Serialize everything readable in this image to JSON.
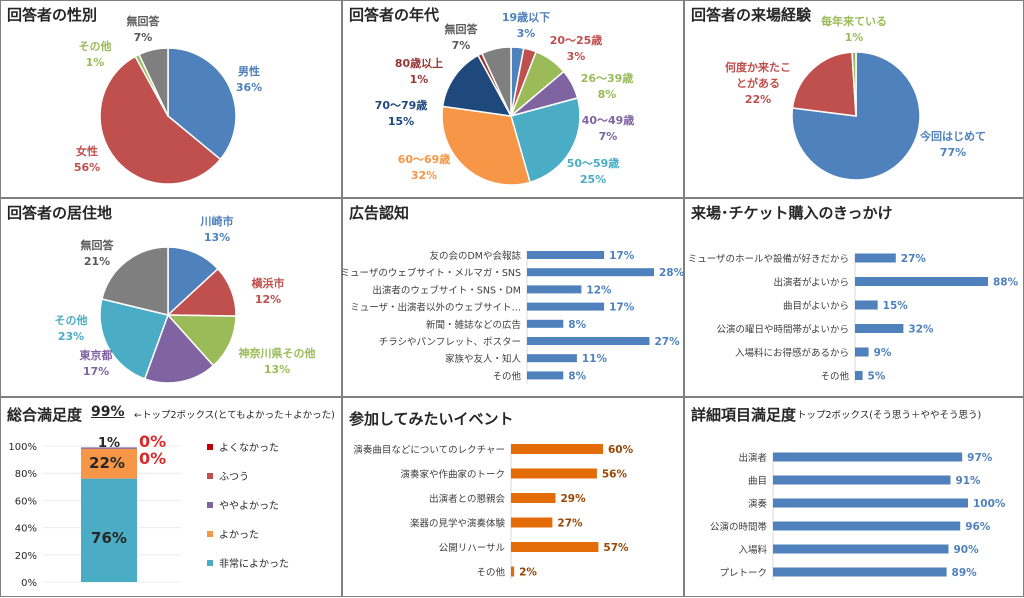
{
  "colors": {
    "blue": "#4f81bd",
    "red": "#c0504d",
    "green": "#9bbb59",
    "purple": "#8064a2",
    "teal": "#4bacc6",
    "orange": "#f79646",
    "navy": "#1f497d",
    "darkred": "#953735",
    "gray": "#7f7f7f",
    "bar_blue": "#4f81bd",
    "bar_orange": "#e36c09",
    "accent_red": "#d92b2b"
  },
  "panels": {
    "gender": {
      "title": "回答者の性別"
    },
    "age": {
      "title": "回答者の年代"
    },
    "visit": {
      "title": "回答者の来場経験"
    },
    "residence": {
      "title": "回答者の居住地"
    },
    "ad": {
      "title": "広告認知"
    },
    "trigger": {
      "title": "来場･チケット購入のきっかけ"
    },
    "satisfaction": {
      "title": "総合満足度",
      "score": "99%",
      "note": "←トップ2ボックス(とてもよかった＋よかった)"
    },
    "events": {
      "title": "参加してみたいイベント"
    },
    "detail": {
      "title": "詳細項目満足度",
      "note": "トップ2ボックス(そう思う＋ややそう思う)"
    }
  },
  "chart_data": [
    {
      "id": "gender",
      "type": "pie",
      "slices": [
        {
          "label": "男性",
          "pct": "36%",
          "value": 36,
          "color": "#4f81bd"
        },
        {
          "label": "女性",
          "pct": "56%",
          "value": 56,
          "color": "#c0504d"
        },
        {
          "label": "その他",
          "pct": "1%",
          "value": 1,
          "color": "#9bbb59"
        },
        {
          "label": "無回答",
          "pct": "7%",
          "value": 7,
          "color": "#7f7f7f"
        }
      ]
    },
    {
      "id": "age",
      "type": "pie",
      "slices": [
        {
          "label": "19歳以下",
          "pct": "3%",
          "value": 3,
          "color": "#4f81bd"
        },
        {
          "label": "20～25歳",
          "pct": "3%",
          "value": 3,
          "color": "#c0504d"
        },
        {
          "label": "26～39歳",
          "pct": "8%",
          "value": 8,
          "color": "#9bbb59"
        },
        {
          "label": "40～49歳",
          "pct": "7%",
          "value": 7,
          "color": "#8064a2"
        },
        {
          "label": "50～59歳",
          "pct": "25%",
          "value": 25,
          "color": "#4bacc6"
        },
        {
          "label": "60～69歳",
          "pct": "32%",
          "value": 32,
          "color": "#f79646"
        },
        {
          "label": "70～79歳",
          "pct": "15%",
          "value": 15,
          "color": "#1f497d"
        },
        {
          "label": "80歳以上",
          "pct": "1%",
          "value": 1,
          "color": "#953735"
        },
        {
          "label": "無回答",
          "pct": "7%",
          "value": 7,
          "color": "#7f7f7f"
        }
      ]
    },
    {
      "id": "visit",
      "type": "pie",
      "slices": [
        {
          "label": "今回はじめて",
          "pct": "77%",
          "value": 77,
          "color": "#4f81bd"
        },
        {
          "label": "何度か来たことがある",
          "pct": "22%",
          "value": 22,
          "color": "#c0504d"
        },
        {
          "label": "毎年来ている",
          "pct": "1%",
          "value": 1,
          "color": "#9bbb59"
        }
      ]
    },
    {
      "id": "residence",
      "type": "pie",
      "slices": [
        {
          "label": "川崎市",
          "pct": "13%",
          "value": 13,
          "color": "#4f81bd"
        },
        {
          "label": "横浜市",
          "pct": "12%",
          "value": 12,
          "color": "#c0504d"
        },
        {
          "label": "神奈川県その他",
          "pct": "13%",
          "value": 13,
          "color": "#9bbb59"
        },
        {
          "label": "東京都",
          "pct": "17%",
          "value": 17,
          "color": "#8064a2"
        },
        {
          "label": "その他",
          "pct": "23%",
          "value": 23,
          "color": "#4bacc6"
        },
        {
          "label": "無回答",
          "pct": "21%",
          "value": 21,
          "color": "#7f7f7f"
        }
      ]
    },
    {
      "id": "ad",
      "type": "bar",
      "orientation": "horizontal",
      "categories": [
        "友の会のDMや会報誌",
        "ミューザのウェブサイト・メルマガ・SNS",
        "出演者のウェブサイト・SNS・DM",
        "ミューザ・出演者以外のウェブサイト…",
        "新聞・雑誌などの広告",
        "チラシやパンフレット、ポスター",
        "家族や友人・知人",
        "その他"
      ],
      "values": [
        17,
        28,
        12,
        17,
        8,
        27,
        11,
        8
      ],
      "labels": [
        "17%",
        "28%",
        "12%",
        "17%",
        "8%",
        "27%",
        "11%",
        "8%"
      ],
      "max": 28
    },
    {
      "id": "trigger",
      "type": "bar",
      "orientation": "horizontal",
      "categories": [
        "ミューザのホールや設備が好きだから",
        "出演者がよいから",
        "曲目がよいから",
        "公演の曜日や時間帯がよいから",
        "入場料にお得感があるから",
        "その他"
      ],
      "values": [
        27,
        88,
        15,
        32,
        9,
        5
      ],
      "labels": [
        "27%",
        "88%",
        "15%",
        "32%",
        "9%",
        "5%"
      ],
      "max": 88
    },
    {
      "id": "satisfaction",
      "type": "bar",
      "orientation": "vertical",
      "stacked": true,
      "y_ticks": [
        "0%",
        "20%",
        "40%",
        "60%",
        "80%",
        "100%"
      ],
      "ylim": [
        0,
        100
      ],
      "segments": [
        {
          "name": "非常によかった",
          "value": 76,
          "label": "76%",
          "color": "#4bacc6"
        },
        {
          "name": "よかった",
          "value": 22,
          "label": "22%",
          "color": "#f79646"
        },
        {
          "name": "ややよかった",
          "value": 1,
          "label": "1%",
          "color": "#8064a2"
        },
        {
          "name": "ふつう",
          "value": 0,
          "label": "0%",
          "color": "#c0504d"
        },
        {
          "name": "よくなかった",
          "value": 0,
          "label": "0%",
          "color": "#c00000"
        }
      ],
      "legend": [
        "よくなかった",
        "ふつう",
        "ややよかった",
        "よかった",
        "非常によかった"
      ]
    },
    {
      "id": "events",
      "type": "bar",
      "orientation": "horizontal",
      "categories": [
        "演奏曲目などについてのレクチャー",
        "演奏家や作曲家のトーク",
        "出演者との懇親会",
        "楽器の見学や演奏体験",
        "公開リハーサル",
        "その他"
      ],
      "values": [
        60,
        56,
        29,
        27,
        57,
        2
      ],
      "labels": [
        "60%",
        "56%",
        "29%",
        "27%",
        "57%",
        "2%"
      ],
      "max": 60
    },
    {
      "id": "detail",
      "type": "bar",
      "orientation": "horizontal",
      "categories": [
        "出演者",
        "曲目",
        "演奏",
        "公演の時間帯",
        "入場料",
        "プレトーク"
      ],
      "values": [
        97,
        91,
        100,
        96,
        90,
        89
      ],
      "labels": [
        "97%",
        "91%",
        "100%",
        "96%",
        "90%",
        "89%"
      ],
      "max": 100
    }
  ]
}
